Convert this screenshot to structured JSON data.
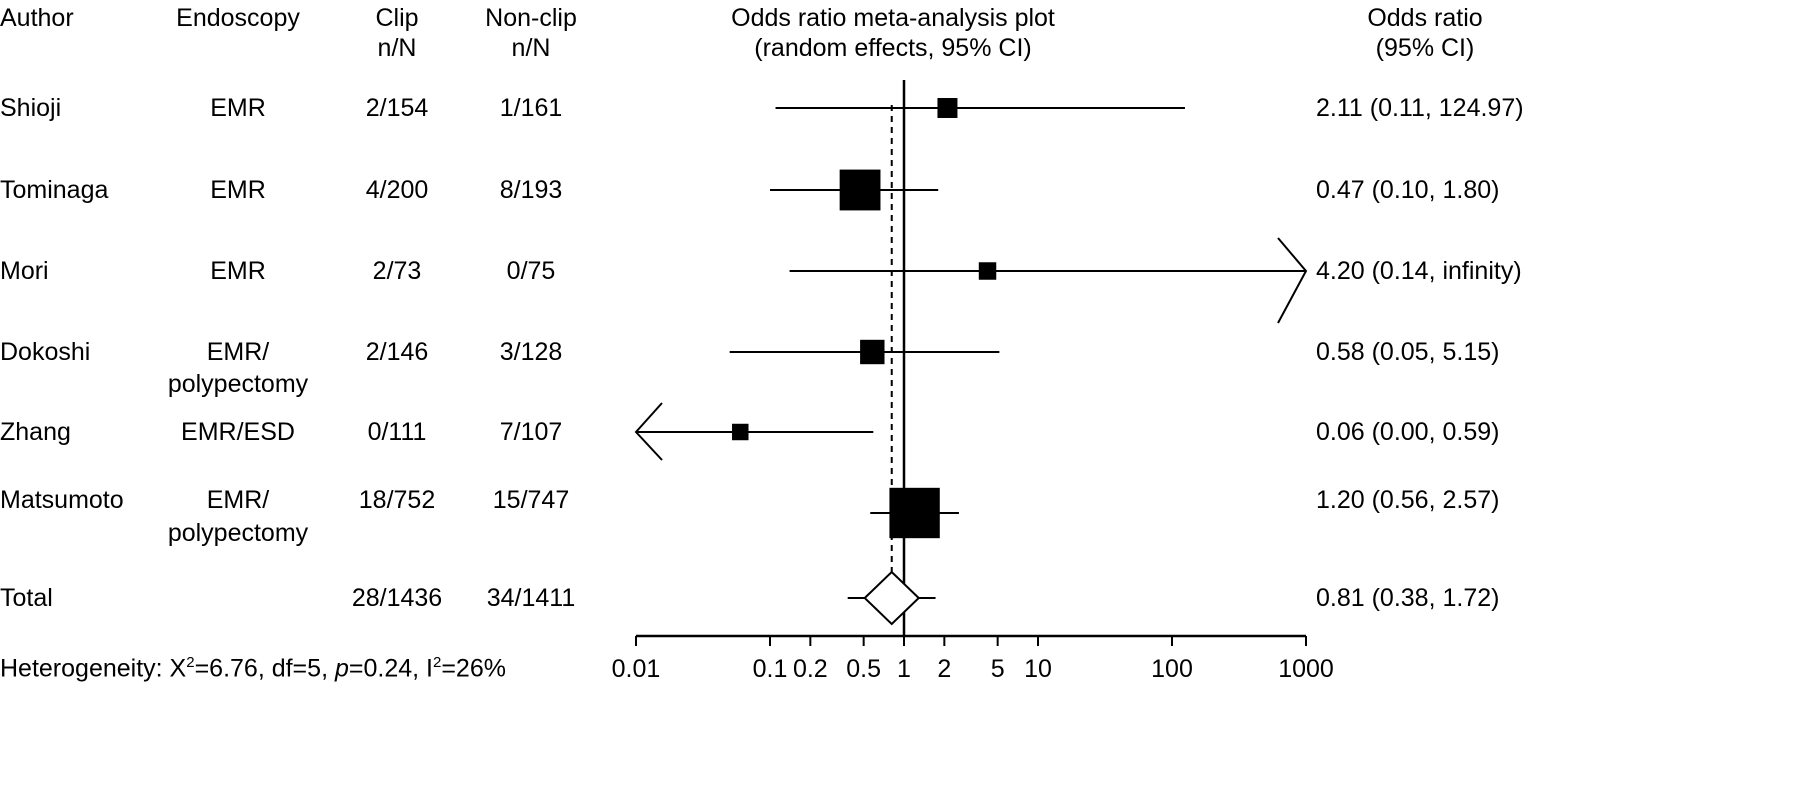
{
  "headers": {
    "author": "Author",
    "endoscopy": "Endoscopy",
    "clip_1": "Clip",
    "clip_2": "n/N",
    "nonclip_1": "Non-clip",
    "nonclip_2": "n/N",
    "plot_1": "Odds ratio meta-analysis plot",
    "plot_2": "(random effects, 95% CI)",
    "or_1": "Odds ratio",
    "or_2": "(95% CI)"
  },
  "rows": [
    {
      "author": "Shioji",
      "endoscopy": [
        "EMR"
      ],
      "clip": "2/154",
      "nonclip": "1/161",
      "or_text": "2.11 (0.11, 124.97)"
    },
    {
      "author": "Tominaga",
      "endoscopy": [
        "EMR"
      ],
      "clip": "4/200",
      "nonclip": "8/193",
      "or_text": "0.47 (0.10, 1.80)"
    },
    {
      "author": "Mori",
      "endoscopy": [
        "EMR"
      ],
      "clip": "2/73",
      "nonclip": "0/75",
      "or_text": "4.20 (0.14, infinity)"
    },
    {
      "author": "Dokoshi",
      "endoscopy": [
        "EMR/",
        "polypectomy"
      ],
      "clip": "2/146",
      "nonclip": "3/128",
      "or_text": "0.58 (0.05, 5.15)"
    },
    {
      "author": "Zhang",
      "endoscopy": [
        "EMR/ESD"
      ],
      "clip": "0/111",
      "nonclip": "7/107",
      "or_text": "0.06 (0.00, 0.59)"
    },
    {
      "author": "Matsumoto",
      "endoscopy": [
        "EMR/",
        "polypectomy"
      ],
      "clip": "18/752",
      "nonclip": "15/747",
      "or_text": "1.20 (0.56, 2.57)"
    }
  ],
  "total": {
    "label": "Total",
    "clip": "28/1436",
    "nonclip": "34/1411",
    "or_text": "0.81 (0.38, 1.72)"
  },
  "heterogeneity": {
    "prefix": "Heterogeneity: X",
    "sup1": "2",
    "mid": "=6.76, df=5, ",
    "p": "p",
    "mid2": "=0.24, I",
    "sup2": "2",
    "suffix": "=26%"
  },
  "chart_data": {
    "type": "forest",
    "scale": "log",
    "xlim": [
      0.01,
      1000
    ],
    "ticks": [
      0.01,
      0.1,
      0.2,
      0.5,
      1,
      2,
      5,
      10,
      100,
      1000
    ],
    "tick_labels": [
      "0.01",
      "0.1",
      "0.2",
      "0.5",
      "1",
      "2",
      "5",
      "10",
      "100",
      "1000"
    ],
    "studies": [
      {
        "name": "Shioji",
        "or": 2.11,
        "lo": 0.11,
        "hi": 124.97,
        "weight": 0.8,
        "arrow_left": false,
        "arrow_right": false
      },
      {
        "name": "Tominaga",
        "or": 0.47,
        "lo": 0.1,
        "hi": 1.8,
        "weight": 6.0,
        "arrow_left": false,
        "arrow_right": false
      },
      {
        "name": "Mori",
        "or": 4.2,
        "lo": 0.14,
        "hi": 1000,
        "weight": 0.5,
        "arrow_left": false,
        "arrow_right": true
      },
      {
        "name": "Dokoshi",
        "or": 0.58,
        "lo": 0.05,
        "hi": 5.15,
        "weight": 1.5,
        "arrow_left": false,
        "arrow_right": false
      },
      {
        "name": "Zhang",
        "or": 0.06,
        "lo": 0.01,
        "hi": 0.59,
        "weight": 0.4,
        "arrow_left": true,
        "arrow_right": false
      },
      {
        "name": "Matsumoto",
        "or": 1.2,
        "lo": 0.56,
        "hi": 2.57,
        "weight": 10.0,
        "arrow_left": false,
        "arrow_right": false
      }
    ],
    "pooled": {
      "or": 0.81,
      "lo": 0.38,
      "hi": 1.72
    },
    "reference_line": 1
  }
}
